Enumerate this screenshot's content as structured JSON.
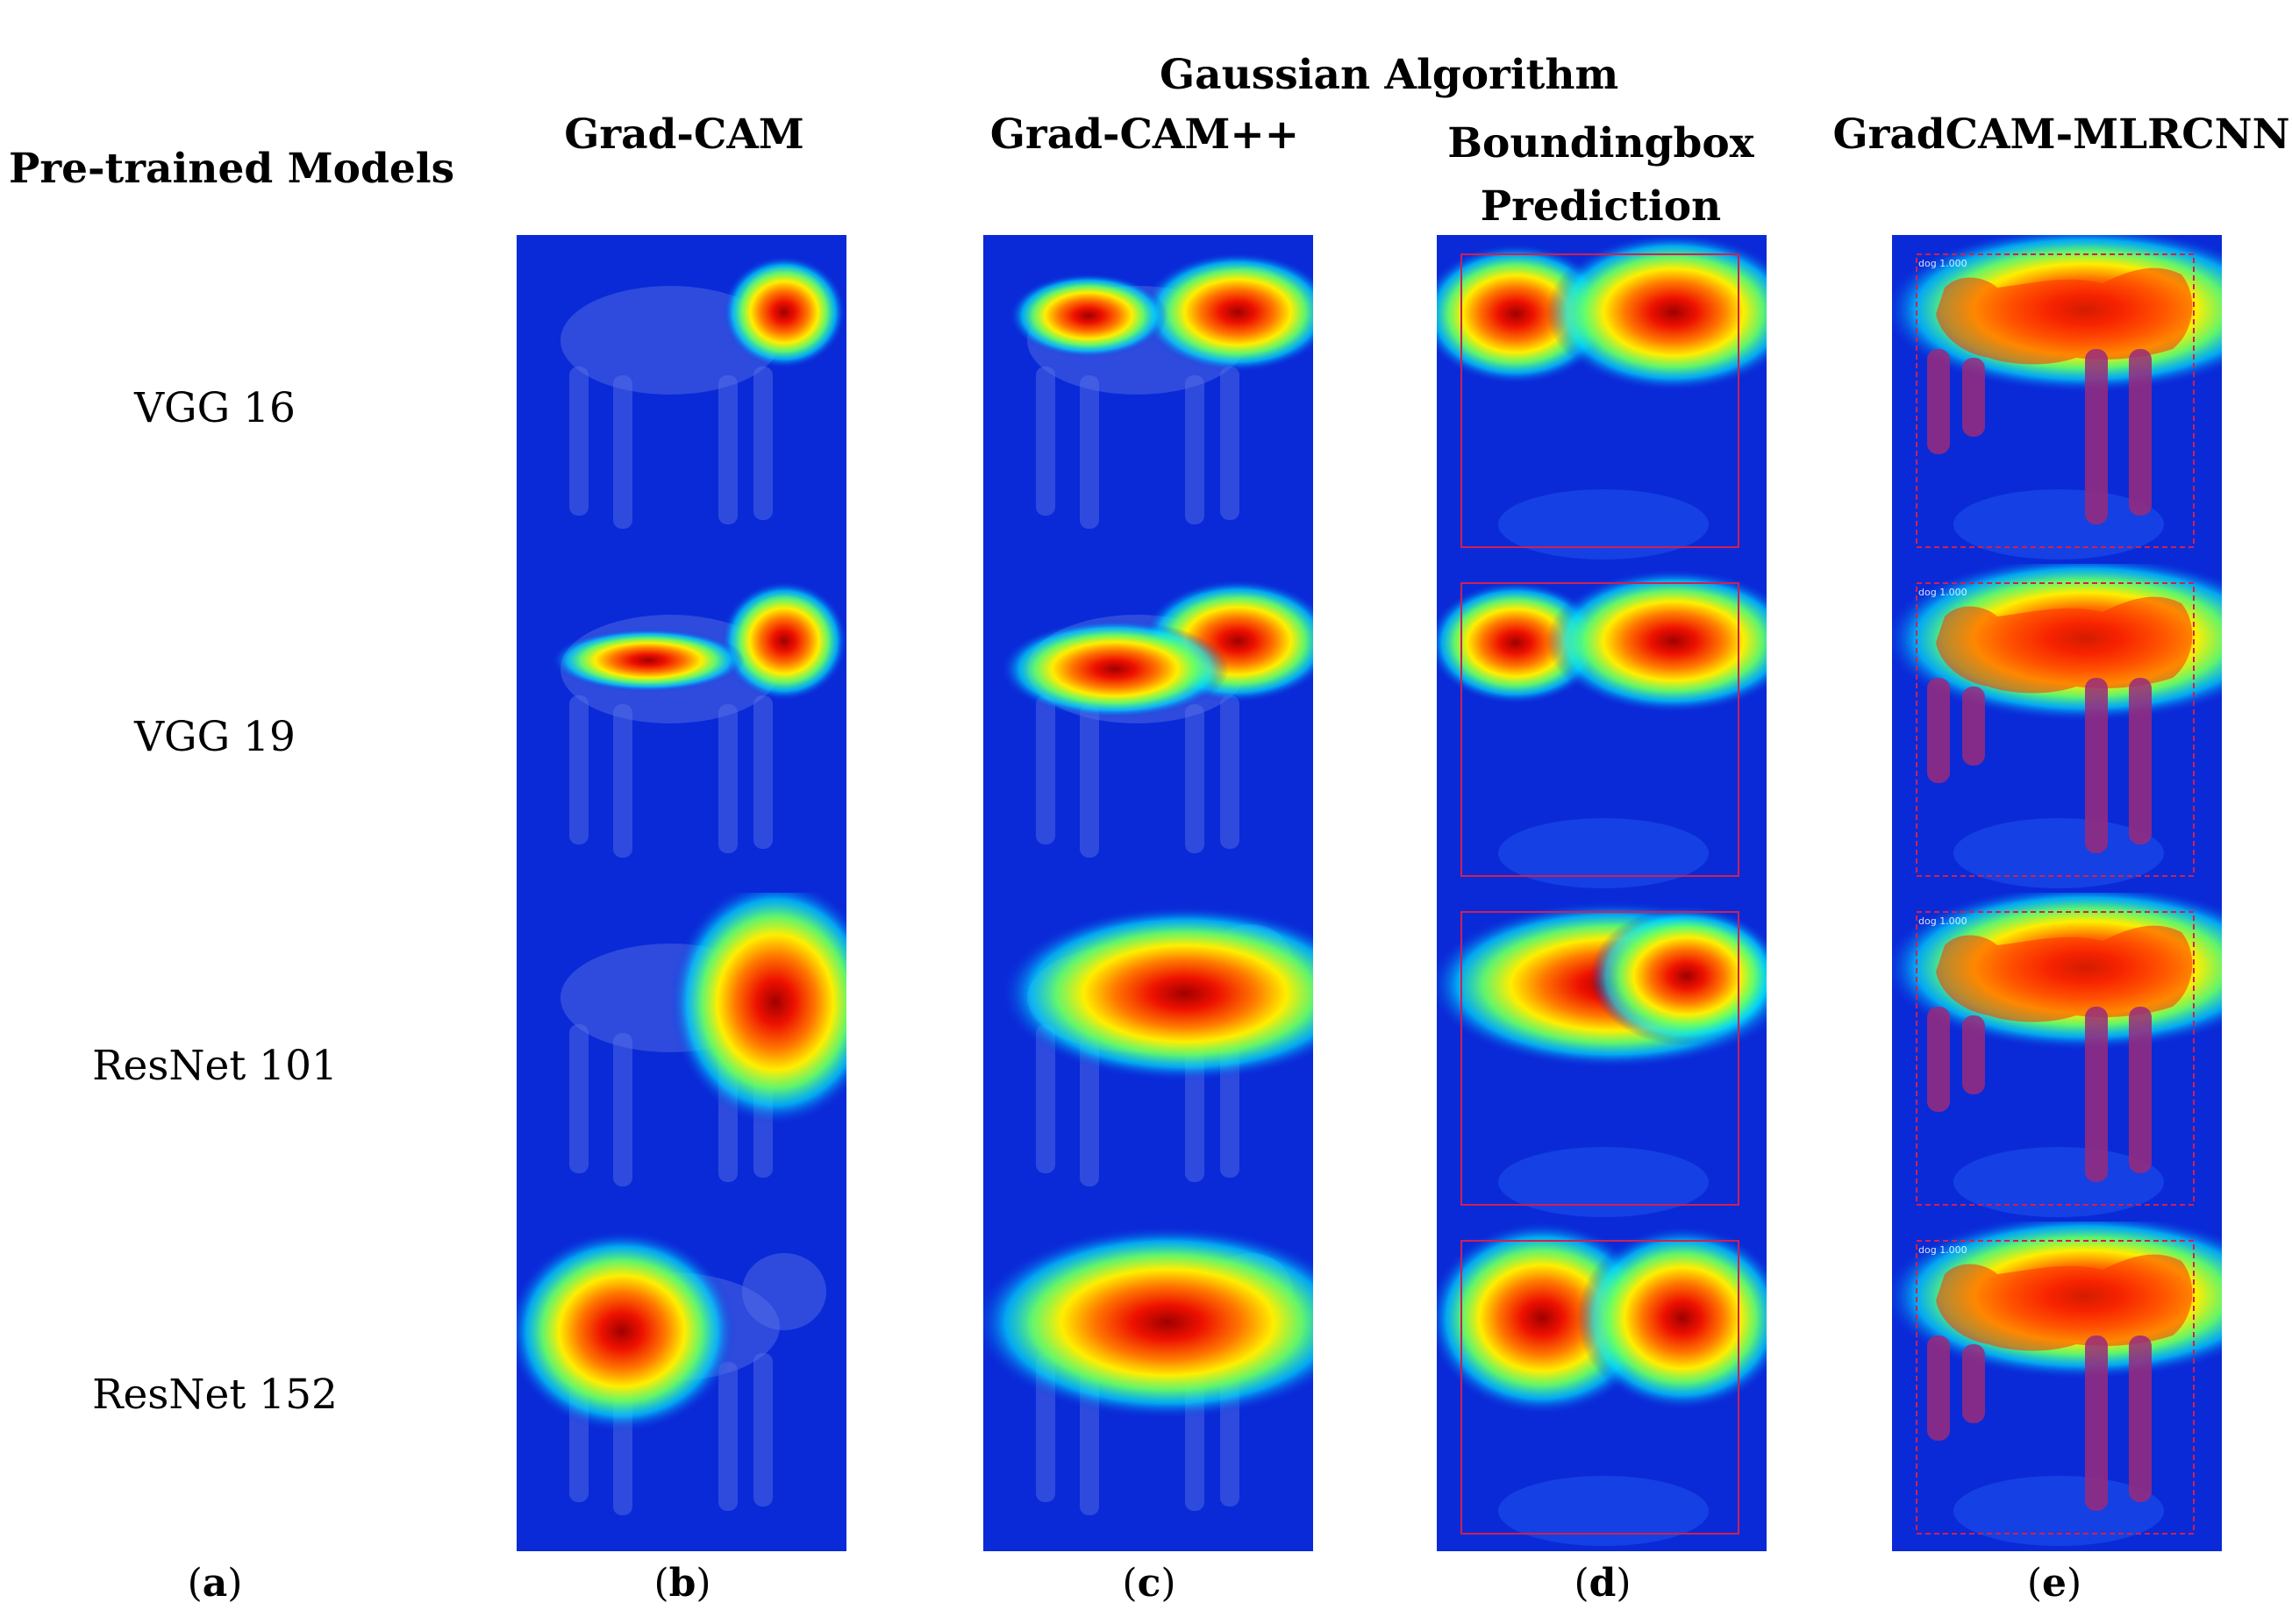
{
  "super_header": "Gaussian Algorithm",
  "row_header_title": "Pre-trained Models",
  "columns": [
    {
      "title": "Grad-CAM",
      "caption_letter": "b"
    },
    {
      "title": "Grad-CAM++",
      "caption_letter": "c"
    },
    {
      "title_line1": "Boundingbox",
      "title_line2": "Prediction",
      "caption_letter": "d"
    },
    {
      "title": "GradCAM-MLRCNN",
      "caption_letter": "e"
    }
  ],
  "row_caption_letter": "a",
  "rows": [
    {
      "model": "VGG 16",
      "detection_label": "dog 1.000"
    },
    {
      "model": "VGG 19",
      "detection_label": "dog 1.000"
    },
    {
      "model": "ResNet 101",
      "detection_label": "dog 1.000"
    },
    {
      "model": "ResNet 152",
      "detection_label": "dog 1.000"
    }
  ],
  "colors": {
    "background_blue": "#0a2ad8",
    "hot_red": "#e00000",
    "bbox_outline": "#d02050",
    "mask_purple": "#9a2a7a"
  }
}
